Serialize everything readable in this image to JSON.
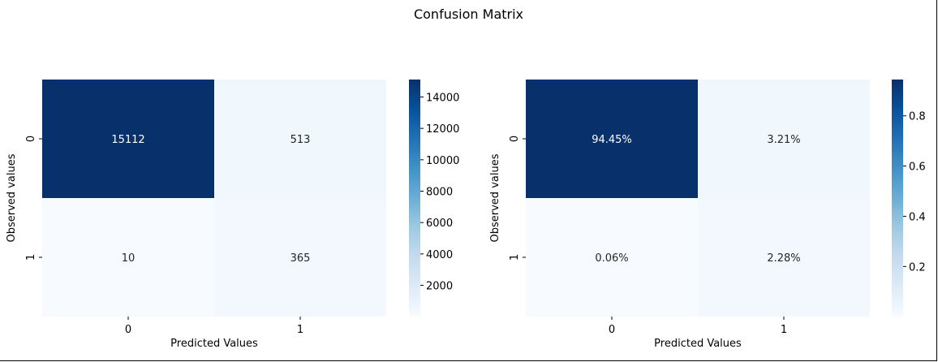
{
  "figure_title": "Confusion Matrix",
  "chart_data": [
    {
      "type": "heatmap",
      "title": "",
      "xlabel": "Predicted Values",
      "ylabel": "Observed values",
      "x_categories": [
        "0",
        "1"
      ],
      "y_categories": [
        "0",
        "1"
      ],
      "values": [
        [
          15112,
          513
        ],
        [
          10,
          365
        ]
      ],
      "cell_labels": [
        [
          "15112",
          "513"
        ],
        [
          "10",
          "365"
        ]
      ],
      "colormap": "Blues",
      "color_range": [
        10,
        15112
      ],
      "colorbar_ticks": [
        2000,
        4000,
        6000,
        8000,
        10000,
        12000,
        14000
      ],
      "colorbar_tick_labels": [
        "2000",
        "4000",
        "6000",
        "8000",
        "10000",
        "12000",
        "14000"
      ]
    },
    {
      "type": "heatmap",
      "title": "",
      "xlabel": "Predicted Values",
      "ylabel": "Observed values",
      "x_categories": [
        "0",
        "1"
      ],
      "y_categories": [
        "0",
        "1"
      ],
      "values": [
        [
          0.9445,
          0.0321
        ],
        [
          0.0006,
          0.0228
        ]
      ],
      "cell_labels": [
        [
          "94.45%",
          "3.21%"
        ],
        [
          "0.06%",
          "2.28%"
        ]
      ],
      "colormap": "Blues",
      "color_range": [
        0.0006,
        0.9445
      ],
      "colorbar_ticks": [
        0.2,
        0.4,
        0.6,
        0.8
      ],
      "colorbar_tick_labels": [
        "0.2",
        "0.4",
        "0.6",
        "0.8"
      ]
    }
  ]
}
